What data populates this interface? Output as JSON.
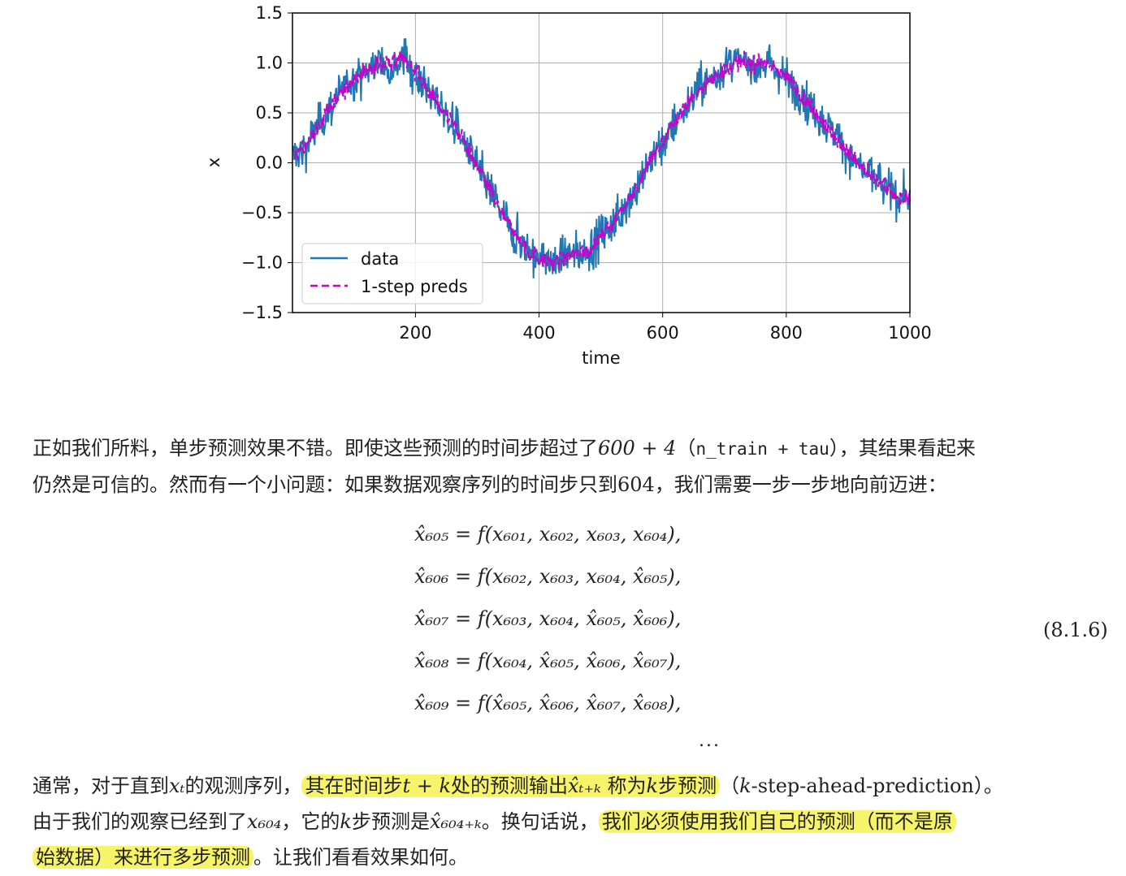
{
  "chart_data": {
    "type": "line",
    "title": "",
    "xlabel": "time",
    "ylabel": "x",
    "xlim": [
      1,
      1000
    ],
    "ylim": [
      -1.5,
      1.5
    ],
    "xticks": [
      200,
      400,
      600,
      800,
      1000
    ],
    "yticks": [
      -1.5,
      -1.0,
      -0.5,
      0.0,
      0.5,
      1.0,
      1.5
    ],
    "ytick_labels": [
      "−1.5",
      "−1.0",
      "−0.5",
      "0.0",
      "0.5",
      "1.0",
      "1.5"
    ],
    "grid": true,
    "legend_position": "lower-left",
    "series": [
      {
        "name": "data",
        "style": "solid",
        "color": "#1f77b4",
        "x_range": [
          1,
          1000
        ],
        "values_every_20": [
          0.05,
          0.15,
          0.35,
          0.55,
          0.7,
          0.85,
          0.92,
          1.0,
          0.98,
          1.05,
          0.9,
          0.72,
          0.55,
          0.4,
          0.18,
          -0.05,
          -0.28,
          -0.52,
          -0.72,
          -0.88,
          -0.95,
          -1.0,
          -0.95,
          -0.9,
          -0.88,
          -0.72,
          -0.6,
          -0.4,
          -0.22,
          0.05,
          0.2,
          0.42,
          0.6,
          0.75,
          0.85,
          0.95,
          1.02,
          0.98,
          1.0,
          0.95,
          0.85,
          0.7,
          0.55,
          0.4,
          0.25,
          0.1,
          -0.05,
          -0.15,
          -0.25,
          -0.35
        ]
      },
      {
        "name": "1-step preds",
        "style": "dashed",
        "color": "#cc00cc",
        "x_range": [
          5,
          1000
        ],
        "values_every_20": [
          0.05,
          0.15,
          0.35,
          0.55,
          0.7,
          0.85,
          0.92,
          1.0,
          0.98,
          1.05,
          0.9,
          0.72,
          0.55,
          0.4,
          0.18,
          -0.05,
          -0.28,
          -0.52,
          -0.72,
          -0.88,
          -0.95,
          -1.0,
          -0.95,
          -0.9,
          -0.88,
          -0.72,
          -0.6,
          -0.4,
          -0.22,
          0.05,
          0.2,
          0.42,
          0.6,
          0.75,
          0.85,
          0.95,
          1.02,
          0.98,
          1.0,
          0.95,
          0.85,
          0.7,
          0.55,
          0.4,
          0.25,
          0.1,
          -0.05,
          -0.15,
          -0.25,
          -0.35
        ]
      }
    ]
  },
  "para1": {
    "line1_a": "正如我们所料，单步预测效果不错。即使这些预测的时间步超过了",
    "line1_math": "600 + 4",
    "line1_b": "（",
    "line1_code": "n_train + tau",
    "line1_c": "），其结果看起来",
    "line2_a": "仍然是可信的。然而有一个小问题：如果数据观察序列的时间步只到",
    "line2_num": "604",
    "line2_b": "，我们需要一步一步地向前迈进："
  },
  "equations": [
    "x̂₆₀₅ = f(x₆₀₁, x₆₀₂, x₆₀₃, x₆₀₄),",
    "x̂₆₀₆ = f(x₆₀₂, x₆₀₃, x₆₀₄, x̂₆₀₅),",
    "x̂₆₀₇ = f(x₆₀₃, x₆₀₄, x̂₆₀₅, x̂₆₀₆),",
    "x̂₆₀₈ = f(x₆₀₄, x̂₆₀₅, x̂₆₀₆, x̂₆₀₇),",
    "x̂₆₀₉ = f(x̂₆₀₅, x̂₆₀₆, x̂₆₀₇, x̂₆₀₈),"
  ],
  "equation_ellipsis": "...",
  "equation_number": "(8.1.6)",
  "para2": {
    "line1_a": "通常，对于直到",
    "line1_m1": "xₜ",
    "line1_b": "的观测序列，",
    "line1_hl_a": "其在时间步",
    "line1_hl_m1": "t + k",
    "line1_hl_b": "处的预测输出",
    "line1_hl_m2": "x̂ₜ₊ₖ",
    "line1_hl_c": " 称为",
    "line1_hl_m3": "k",
    "line1_hl_d": "步预测",
    "line1_c": "（",
    "line1_m4": "k",
    "line1_d": "-step-ahead-prediction）。",
    "line2_a": "由于我们的观察已经到了",
    "line2_m1": "x₆₀₄",
    "line2_b": "，它的",
    "line2_m2": "k",
    "line2_c": "步预测是",
    "line2_m3": "x̂₆₀₄₊ₖ",
    "line2_d": "。换句话说，",
    "line2_hl": "我们必须使用我们自己的预测（而不是原",
    "line3_hl": "始数据）来进行多步预测",
    "line3_a": "。让我们看看效果如何。"
  }
}
